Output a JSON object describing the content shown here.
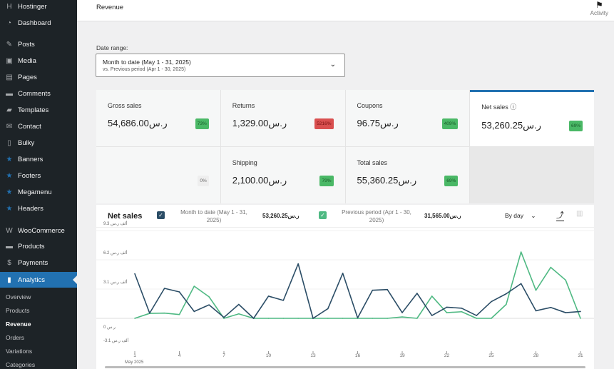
{
  "sidebar": {
    "items": [
      {
        "label": "Hostinger",
        "icon": "hostinger-icon",
        "glyph": "H"
      },
      {
        "label": "Dashboard",
        "icon": "dashboard-icon",
        "glyph": "◔"
      },
      {
        "label": "Posts",
        "icon": "pin-icon",
        "glyph": "✎"
      },
      {
        "label": "Media",
        "icon": "media-icon",
        "glyph": "▣"
      },
      {
        "label": "Pages",
        "icon": "pages-icon",
        "glyph": "▤"
      },
      {
        "label": "Comments",
        "icon": "comments-icon",
        "glyph": "▬"
      },
      {
        "label": "Templates",
        "icon": "folder-icon",
        "glyph": "▰"
      },
      {
        "label": "Contact",
        "icon": "mail-icon",
        "glyph": "✉"
      },
      {
        "label": "Bulky",
        "icon": "document-icon",
        "glyph": "▯"
      },
      {
        "label": "Banners",
        "icon": "star-icon",
        "glyph": "★"
      },
      {
        "label": "Footers",
        "icon": "star-icon",
        "glyph": "★"
      },
      {
        "label": "Megamenu",
        "icon": "star-icon",
        "glyph": "★"
      },
      {
        "label": "Headers",
        "icon": "star-icon",
        "glyph": "★"
      },
      {
        "label": "WooCommerce",
        "icon": "woocommerce-icon",
        "glyph": "W"
      },
      {
        "label": "Products",
        "icon": "products-icon",
        "glyph": "▬"
      },
      {
        "label": "Payments",
        "icon": "payments-icon",
        "glyph": "$"
      },
      {
        "label": "Analytics",
        "icon": "analytics-icon",
        "glyph": "▮"
      }
    ],
    "submenu": [
      "Overview",
      "Products",
      "Revenue",
      "Orders",
      "Variations",
      "Categories"
    ],
    "current_sub": "Revenue"
  },
  "header": {
    "title": "Revenue",
    "activity": "Activity"
  },
  "date_range": {
    "label": "Date range:",
    "value": "Month to date (May 1 - 31, 2025)",
    "compare": "vs. Previous period (Apr 1 - 30, 2025)"
  },
  "cards": [
    {
      "name": "Gross sales",
      "value": "54,686.00ر.س",
      "delta": "73%",
      "status": "good"
    },
    {
      "name": "Returns",
      "value": "1,329.00ر.س",
      "delta": "5216%",
      "status": "bad"
    },
    {
      "name": "Coupons",
      "value": "96.75ر.س",
      "delta": "409%",
      "status": "good"
    },
    {
      "name": "Net sales ⓘ",
      "value": "53,260.25ر.س",
      "delta": "69%",
      "status": "good",
      "selected": true
    },
    {
      "name": "",
      "value": "",
      "delta": "0%",
      "status": "neutral"
    },
    {
      "name": "Shipping",
      "value": "2,100.00ر.س",
      "delta": "79%",
      "status": "good"
    },
    {
      "name": "Total sales",
      "value": "55,360.25ر.س",
      "delta": "69%",
      "status": "good"
    }
  ],
  "chart_panel": {
    "title": "Net sales",
    "interval": "By day"
  },
  "chart_data": {
    "type": "line",
    "x": [
      1,
      2,
      3,
      4,
      5,
      6,
      7,
      8,
      9,
      10,
      11,
      12,
      13,
      14,
      15,
      16,
      17,
      18,
      19,
      20,
      21,
      22,
      23,
      24,
      25,
      26,
      27,
      28,
      29,
      30,
      31
    ],
    "xtick_labels": [
      "1",
      "4",
      "7",
      "10",
      "13",
      "16",
      "19",
      "22",
      "25",
      "28",
      "31"
    ],
    "xtick_days": [
      1,
      4,
      7,
      10,
      13,
      16,
      19,
      22,
      25,
      28,
      31
    ],
    "x_sublabel": "May 2025",
    "ytick_values": [
      9300,
      6200,
      3100,
      0,
      -3100
    ],
    "ytick_labels": [
      "9.3 ألف ر.س",
      "6.2 ألف ر.س",
      "3.1 ألف ر.س",
      "0 ر.س",
      "-3.1 ألف ر.س"
    ],
    "ylim": [
      -3100,
      9300
    ],
    "grid": true,
    "series": [
      {
        "name": "Month to date (May 1 - 31, 2025)",
        "total": "53,260.25ر.س",
        "color": "#2b4d66",
        "values": [
          4725,
          550,
          3175,
          2800,
          725,
          1425,
          100,
          1475,
          0,
          2350,
          1900,
          5775,
          0,
          1025,
          4775,
          50,
          2975,
          3050,
          600,
          2650,
          300,
          1175,
          1075,
          300,
          1775,
          2600,
          3675,
          800,
          1150,
          600,
          725
        ]
      },
      {
        "name": "Previous period (Apr 1 - 30, 2025)",
        "total": "31,565.00ر.س",
        "color": "#4fb983",
        "values": [
          0,
          525,
          550,
          400,
          3400,
          2275,
          0,
          475,
          0,
          0,
          0,
          0,
          0,
          0,
          0,
          0,
          0,
          0,
          150,
          0,
          2350,
          600,
          700,
          0,
          0,
          1475,
          7025,
          2975,
          5400,
          4050,
          0
        ]
      }
    ]
  }
}
